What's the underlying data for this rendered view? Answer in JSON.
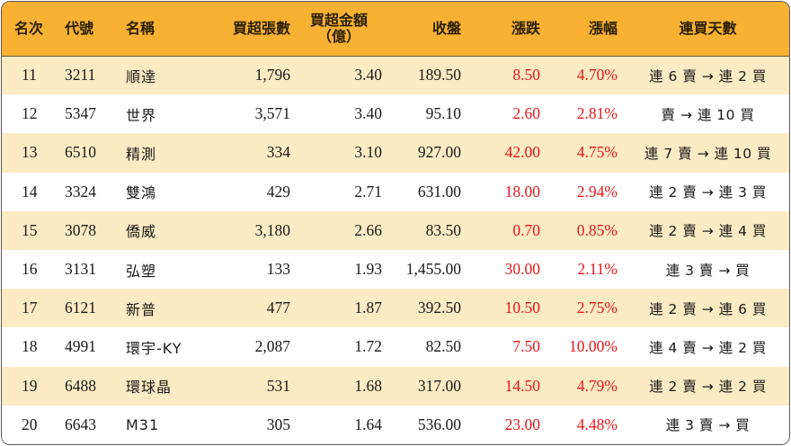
{
  "headers": {
    "rank": "名次",
    "code": "代號",
    "name": "名稱",
    "shares": "買超張數",
    "amount_line1": "買超金額",
    "amount_line2": "（億）",
    "close": "收盤",
    "change": "漲跌",
    "pct": "漲幅",
    "streak": "連買天數"
  },
  "colors": {
    "header_bg": "#f8b133",
    "stripe_bg": "#fdebc4",
    "up": "#e8171a"
  },
  "rows": [
    {
      "rank": "11",
      "code": "3211",
      "name": "順達",
      "shares": "1,796",
      "amount": "3.40",
      "close": "189.50",
      "change": "8.50",
      "pct": "4.70%",
      "streak": "連 6 賣 → 連 2 買"
    },
    {
      "rank": "12",
      "code": "5347",
      "name": "世界",
      "shares": "3,571",
      "amount": "3.40",
      "close": "95.10",
      "change": "2.60",
      "pct": "2.81%",
      "streak": "賣 → 連 10 買"
    },
    {
      "rank": "13",
      "code": "6510",
      "name": "精測",
      "shares": "334",
      "amount": "3.10",
      "close": "927.00",
      "change": "42.00",
      "pct": "4.75%",
      "streak": "連 7 賣 → 連 10 買"
    },
    {
      "rank": "14",
      "code": "3324",
      "name": "雙鴻",
      "shares": "429",
      "amount": "2.71",
      "close": "631.00",
      "change": "18.00",
      "pct": "2.94%",
      "streak": "連 2 賣 → 連 3 買"
    },
    {
      "rank": "15",
      "code": "3078",
      "name": "僑威",
      "shares": "3,180",
      "amount": "2.66",
      "close": "83.50",
      "change": "0.70",
      "pct": "0.85%",
      "streak": "連 2 賣 → 連 4 買"
    },
    {
      "rank": "16",
      "code": "3131",
      "name": "弘塑",
      "shares": "133",
      "amount": "1.93",
      "close": "1,455.00",
      "change": "30.00",
      "pct": "2.11%",
      "streak": "連 3 賣 → 買"
    },
    {
      "rank": "17",
      "code": "6121",
      "name": "新普",
      "shares": "477",
      "amount": "1.87",
      "close": "392.50",
      "change": "10.50",
      "pct": "2.75%",
      "streak": "連 2 賣 → 連 6 買"
    },
    {
      "rank": "18",
      "code": "4991",
      "name": "環宇-KY",
      "shares": "2,087",
      "amount": "1.72",
      "close": "82.50",
      "change": "7.50",
      "pct": "10.00%",
      "streak": "連 4 賣 → 連 2 買"
    },
    {
      "rank": "19",
      "code": "6488",
      "name": "環球晶",
      "shares": "531",
      "amount": "1.68",
      "close": "317.00",
      "change": "14.50",
      "pct": "4.79%",
      "streak": "連 2 賣 → 連 2 買"
    },
    {
      "rank": "20",
      "code": "6643",
      "name": "M31",
      "shares": "305",
      "amount": "1.64",
      "close": "536.00",
      "change": "23.00",
      "pct": "4.48%",
      "streak": "連 3 賣 → 買"
    }
  ]
}
